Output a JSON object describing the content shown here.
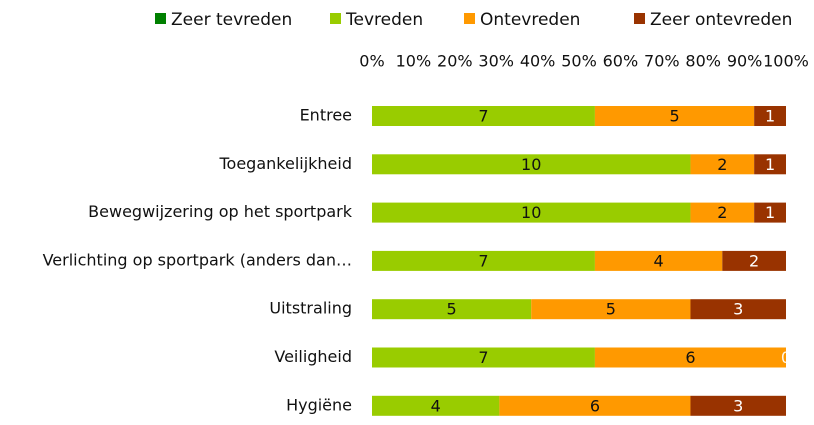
{
  "chart_data": {
    "type": "bar",
    "orientation": "horizontal",
    "stacked": "percent",
    "categories": [
      "Entree",
      "Toegankelijkheid",
      "Bewegwijzering op het sportpark",
      "Verlichting op sportpark (anders dan…",
      "Uitstraling",
      "Veiligheid",
      "Hygiëne"
    ],
    "series": [
      {
        "name": "Zeer tevreden",
        "color": "#008000",
        "values": [
          0,
          0,
          0,
          0,
          0,
          0,
          0
        ]
      },
      {
        "name": "Tevreden",
        "color": "#99cc00",
        "values": [
          7,
          10,
          10,
          7,
          5,
          7,
          4
        ]
      },
      {
        "name": "Ontevreden",
        "color": "#ff9900",
        "values": [
          5,
          2,
          2,
          4,
          5,
          6,
          6
        ]
      },
      {
        "name": "Zeer ontevreden",
        "color": "#993300",
        "values": [
          1,
          1,
          1,
          2,
          3,
          0,
          3
        ]
      }
    ],
    "xlim": [
      0,
      100
    ],
    "xticks": [
      {
        "value": 0,
        "label": "0%"
      },
      {
        "value": 10,
        "label": "10%"
      },
      {
        "value": 20,
        "label": "20%"
      },
      {
        "value": 30,
        "label": "30%"
      },
      {
        "value": 40,
        "label": "40%"
      },
      {
        "value": 50,
        "label": "50%"
      },
      {
        "value": 60,
        "label": "60%"
      },
      {
        "value": 70,
        "label": "70%"
      },
      {
        "value": 80,
        "label": "80%"
      },
      {
        "value": 90,
        "label": "90%"
      },
      {
        "value": 100,
        "label": "100%"
      }
    ],
    "legend": "top",
    "grid": false
  }
}
